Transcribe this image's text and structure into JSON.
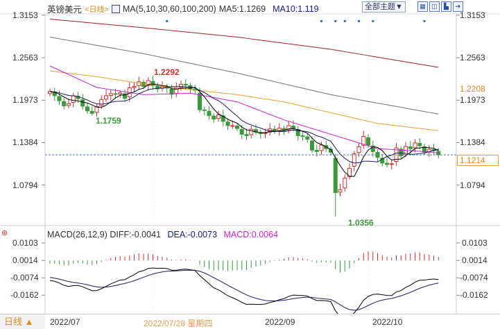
{
  "header": {
    "symbol": "英镑美元",
    "period": "<日线>",
    "ma_label": "MA(5,10,30,60,100,200)",
    "ma5": "MA5:1.1269",
    "ma10": "MA10:1.119",
    "theme_button": "全部主题▼",
    "icons": [
      "grid-icon",
      "split-icon",
      "chart-icon",
      "export-icon"
    ]
  },
  "price_axis": {
    "ticks": [
      "1.3153",
      "1.2563",
      "1.1973",
      "1.1384",
      "1.0794"
    ],
    "tick_values": [
      1.3153,
      1.2563,
      1.1973,
      1.1384,
      1.0794
    ],
    "highlight": "1.2208",
    "current": "1.1214"
  },
  "annotations": {
    "high": "1.2292",
    "low_july": "1.1759",
    "low": "1.0356"
  },
  "macd": {
    "title": "MACD(26,12,9)",
    "diff": "DIFF:-0.0041",
    "dea": "DEA:-0.0073",
    "macd": "MACD:0.0064",
    "ticks": [
      "0.0103",
      "0.0014",
      "-0.0074",
      "-0.0162"
    ],
    "tick_values": [
      0.0103,
      0.0014,
      -0.0074,
      -0.0162
    ]
  },
  "footer": {
    "period_button": "日线 ▲",
    "dates": [
      "2022/07",
      "2022/07/28 星期四",
      "2022/09",
      "2022/10"
    ]
  },
  "colors": {
    "up": "#d03030",
    "down": "#3a9a3a",
    "ma5": "#000000",
    "ma10": "#1a1a6a",
    "ma30": "#d020d0",
    "ma60": "#f0a030",
    "ma100": "#707070",
    "ma200": "#a02020",
    "accent": "#e08a20"
  },
  "chart_data": {
    "type": "candlestick",
    "closes": [
      1.2095,
      1.2035,
      1.1965,
      1.1895,
      1.1925,
      1.2035,
      1.1995,
      1.189,
      1.1825,
      1.179,
      1.1885,
      1.198,
      1.2035,
      1.2065,
      1.2055,
      1.2075,
      1.2,
      1.2145,
      1.2165,
      1.223,
      1.2165,
      1.2245,
      1.2175,
      1.213,
      1.2165,
      1.214,
      1.2055,
      1.214,
      1.2195,
      1.2185,
      1.213,
      1.211,
      1.184,
      1.183,
      1.176,
      1.171,
      1.177,
      1.168,
      1.162,
      1.162,
      1.158,
      1.15,
      1.148,
      1.157,
      1.153,
      1.151,
      1.152,
      1.1575,
      1.1545,
      1.1585,
      1.155,
      1.162,
      1.158,
      1.148,
      1.147,
      1.143,
      1.128,
      1.126,
      1.135,
      1.13,
      1.125,
      1.069,
      1.073,
      1.089,
      1.1025,
      1.123,
      1.1325,
      1.147,
      1.135,
      1.126,
      1.118,
      1.11,
      1.108,
      1.109,
      1.131,
      1.12,
      1.133,
      1.13,
      1.138,
      1.134,
      1.125,
      1.129,
      1.127,
      1.1214
    ],
    "extremes": {
      "high": {
        "index": 21,
        "value": 1.2292
      },
      "low_july": {
        "index": 9,
        "value": 1.1759
      },
      "low": {
        "index": 61,
        "value": 1.0356
      }
    },
    "ma_long": {
      "ma30": [
        [
          0,
          1.245
        ],
        [
          10,
          1.215
        ],
        [
          20,
          1.205
        ],
        [
          30,
          1.207
        ],
        [
          40,
          1.195
        ],
        [
          50,
          1.17
        ],
        [
          60,
          1.15
        ],
        [
          70,
          1.13
        ],
        [
          80,
          1.126
        ],
        [
          83,
          1.124
        ]
      ],
      "ma60": [
        [
          0,
          1.238
        ],
        [
          10,
          1.23
        ],
        [
          20,
          1.22
        ],
        [
          30,
          1.212
        ],
        [
          40,
          1.205
        ],
        [
          50,
          1.195
        ],
        [
          60,
          1.18
        ],
        [
          70,
          1.165
        ],
        [
          83,
          1.155
        ]
      ],
      "ma100": [
        [
          0,
          1.285
        ],
        [
          20,
          1.262
        ],
        [
          40,
          1.235
        ],
        [
          60,
          1.205
        ],
        [
          83,
          1.178
        ]
      ],
      "ma200": [
        [
          0,
          1.31
        ],
        [
          20,
          1.298
        ],
        [
          40,
          1.285
        ],
        [
          60,
          1.268
        ],
        [
          83,
          1.243
        ]
      ]
    },
    "event_markers": [
      25,
      58,
      61,
      63,
      66,
      69,
      80
    ],
    "ylim": [
      1.0356,
      1.3153
    ]
  }
}
